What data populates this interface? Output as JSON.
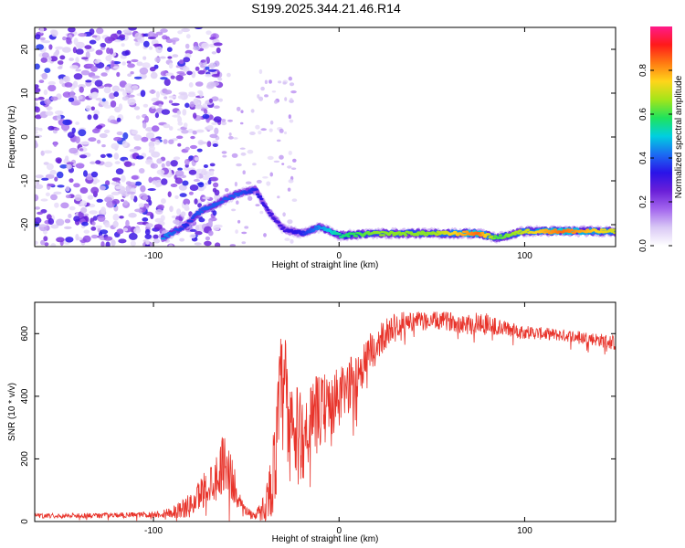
{
  "title": "S199.2025.344.21.46.R14",
  "colors": {
    "snr_line": "#e8332a",
    "frame": "#000000",
    "colormap": [
      "#ffffff",
      "#d9c8f5",
      "#a366ee",
      "#6a1fd8",
      "#2a13e8",
      "#1b6cf2",
      "#00d0e0",
      "#1fe35c",
      "#a4e51a",
      "#ffd51a",
      "#ff7a12",
      "#ff1a1a",
      "#ff1a8a"
    ]
  },
  "chart_data": [
    {
      "type": "heatmap",
      "name": "spectrogram",
      "xlabel": "Height of straight line (km)",
      "ylabel": "Frequency (Hz)",
      "xlim": [
        -164,
        149
      ],
      "ylim": [
        -25,
        25
      ],
      "x_ticks": [
        -100,
        0,
        100
      ],
      "y_ticks": [
        -20,
        -10,
        0,
        10,
        20
      ],
      "grid": false,
      "colorbar": {
        "label": "Normalized spectral amplitude",
        "range": [
          0,
          1
        ],
        "ticks": [
          0.0,
          0.2,
          0.4,
          0.6,
          0.8
        ]
      },
      "ridge": {
        "description_points": [
          {
            "x": -95,
            "y": -23,
            "amp": 0.45
          },
          {
            "x": -82,
            "y": -20,
            "amp": 0.35
          },
          {
            "x": -75,
            "y": -17,
            "amp": 0.4
          },
          {
            "x": -65,
            "y": -15,
            "amp": 0.4
          },
          {
            "x": -55,
            "y": -13,
            "amp": 0.4
          },
          {
            "x": -45,
            "y": -12,
            "amp": 0.35
          },
          {
            "x": -38,
            "y": -17,
            "amp": 0.3
          },
          {
            "x": -30,
            "y": -21,
            "amp": 0.3
          },
          {
            "x": -20,
            "y": -22,
            "amp": 0.35
          },
          {
            "x": -10,
            "y": -20.5,
            "amp": 0.45
          },
          {
            "x": 0,
            "y": -22.5,
            "amp": 0.55
          },
          {
            "x": 20,
            "y": -22,
            "amp": 0.65
          },
          {
            "x": 50,
            "y": -22,
            "amp": 0.65
          },
          {
            "x": 75,
            "y": -22,
            "amp": 0.85
          },
          {
            "x": 85,
            "y": -23,
            "amp": 0.6
          },
          {
            "x": 100,
            "y": -21.5,
            "amp": 0.7
          },
          {
            "x": 120,
            "y": -21.5,
            "amp": 0.85
          },
          {
            "x": 149,
            "y": -21.5,
            "amp": 0.7
          }
        ]
      }
    },
    {
      "type": "line",
      "name": "snr",
      "xlabel": "Height of straight line (km)",
      "ylabel": "SNR (10 * v/v)",
      "xlim": [
        -164,
        149
      ],
      "ylim": [
        0,
        700
      ],
      "x_ticks": [
        -100,
        0,
        100
      ],
      "y_ticks": [
        0,
        200,
        400,
        600
      ],
      "grid": false,
      "envelope": {
        "x": [
          -164,
          -120,
          -100,
          -90,
          -80,
          -72,
          -65,
          -62,
          -58,
          -54,
          -50,
          -46,
          -42,
          -38,
          -34,
          -32,
          -30,
          -28,
          -26,
          -22,
          -18,
          -14,
          -10,
          -5,
          0,
          5,
          10,
          15,
          20,
          25,
          30,
          35,
          40,
          50,
          60,
          70,
          78,
          85,
          90,
          100,
          110,
          120,
          130,
          140,
          149
        ],
        "y": [
          18,
          20,
          22,
          30,
          50,
          110,
          150,
          200,
          140,
          70,
          35,
          22,
          30,
          80,
          200,
          380,
          420,
          380,
          300,
          260,
          290,
          330,
          350,
          370,
          390,
          430,
          470,
          520,
          560,
          600,
          625,
          635,
          640,
          640,
          640,
          630,
          635,
          620,
          615,
          605,
          600,
          595,
          590,
          580,
          570
        ],
        "spike": [
          8,
          8,
          10,
          20,
          40,
          60,
          80,
          100,
          80,
          30,
          15,
          12,
          30,
          80,
          160,
          200,
          220,
          220,
          200,
          160,
          140,
          130,
          120,
          110,
          100,
          90,
          80,
          70,
          60,
          50,
          40,
          35,
          30,
          30,
          30,
          35,
          40,
          30,
          25,
          22,
          20,
          20,
          20,
          22,
          25
        ]
      }
    }
  ]
}
